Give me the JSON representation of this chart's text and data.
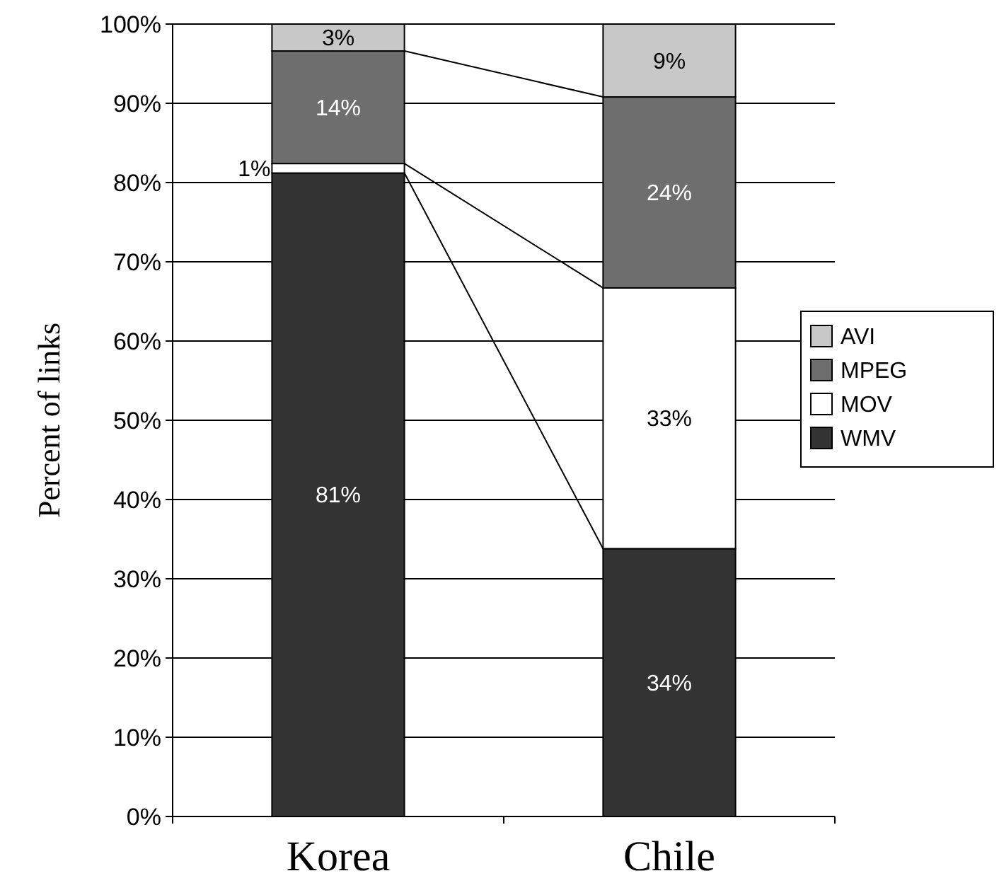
{
  "chart_data": {
    "type": "bar",
    "stacked": true,
    "ylabel": "Percent of links",
    "categories": [
      "Korea",
      "Chile"
    ],
    "series": [
      {
        "name": "WMV",
        "color": "#333333",
        "values": [
          81.2,
          33.8
        ],
        "value_labels": [
          "81%",
          "34%"
        ]
      },
      {
        "name": "MOV",
        "color": "#ffffff",
        "values": [
          1.2,
          32.9
        ],
        "value_labels": [
          "1%",
          "33%"
        ]
      },
      {
        "name": "MPEG",
        "color": "#6e6e6e",
        "values": [
          14.2,
          24.1
        ],
        "value_labels": [
          "14%",
          "24%"
        ]
      },
      {
        "name": "AVI",
        "color": "#c8c8c8",
        "values": [
          3.4,
          9.2
        ],
        "value_labels": [
          "3%",
          "9%"
        ]
      }
    ],
    "ylim": [
      0,
      100
    ],
    "yticks": [
      {
        "value": 0,
        "label": "0%"
      },
      {
        "value": 10,
        "label": "10%"
      },
      {
        "value": 20,
        "label": "20%"
      },
      {
        "value": 30,
        "label": "30%"
      },
      {
        "value": 40,
        "label": "40%"
      },
      {
        "value": 50,
        "label": "50%"
      },
      {
        "value": 60,
        "label": "60%"
      },
      {
        "value": 70,
        "label": "70%"
      },
      {
        "value": 80,
        "label": "80%"
      },
      {
        "value": 90,
        "label": "90%"
      },
      {
        "value": 100,
        "label": "100%"
      }
    ],
    "grid": "y",
    "legend": "right"
  }
}
